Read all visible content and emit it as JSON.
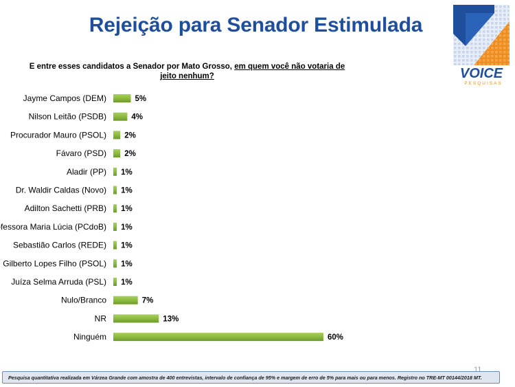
{
  "title": "Rejeição para Senador Estimulada",
  "logo": {
    "brand": "VOICE",
    "tagline": "PESQUISAS",
    "colors": {
      "blue": "#1f4e9c",
      "orange": "#f08c1e",
      "light": "#e8eef7"
    }
  },
  "question": {
    "part1": "E entre esses candidatos a Senador por Mato Grosso, ",
    "part2": "em quem você não votaria de jeito nenhum?"
  },
  "chart_data": {
    "type": "bar",
    "orientation": "horizontal",
    "categories": [
      "Jayme Campos (DEM)",
      "Nilson Leitão (PSDB)",
      "Procurador Mauro (PSOL)",
      "Fávaro (PSD)",
      "Aladir (PP)",
      "Dr. Waldir Caldas (Novo)",
      "Adilton Sachetti (PRB)",
      "Professora Maria Lúcia (PCdoB)",
      "Sebastião Carlos (REDE)",
      "Gilberto Lopes Filho (PSOL)",
      "Juíza Selma Arruda (PSL)",
      "Nulo/Branco",
      "NR",
      "Ninguém"
    ],
    "values": [
      5,
      4,
      2,
      2,
      1,
      1,
      1,
      1,
      1,
      1,
      1,
      7,
      13,
      60
    ],
    "value_labels": [
      "5%",
      "4%",
      "2%",
      "2%",
      "1%",
      "1%",
      "1%",
      "1%",
      "1%",
      "1%",
      "1%",
      "7%",
      "13%",
      "60%"
    ],
    "xlim": [
      0,
      60
    ],
    "bar_color": "#8dbb3f",
    "grid": false
  },
  "page_number": "11",
  "footer": "Pesquisa quantitativa realizada em Várzea Grande com  amostra de 400 entrevistas, intervalo de confiança de 95% e margem de erro de 5% para mais ou para menos. Registro no TRE-MT  00144/2018 MT."
}
